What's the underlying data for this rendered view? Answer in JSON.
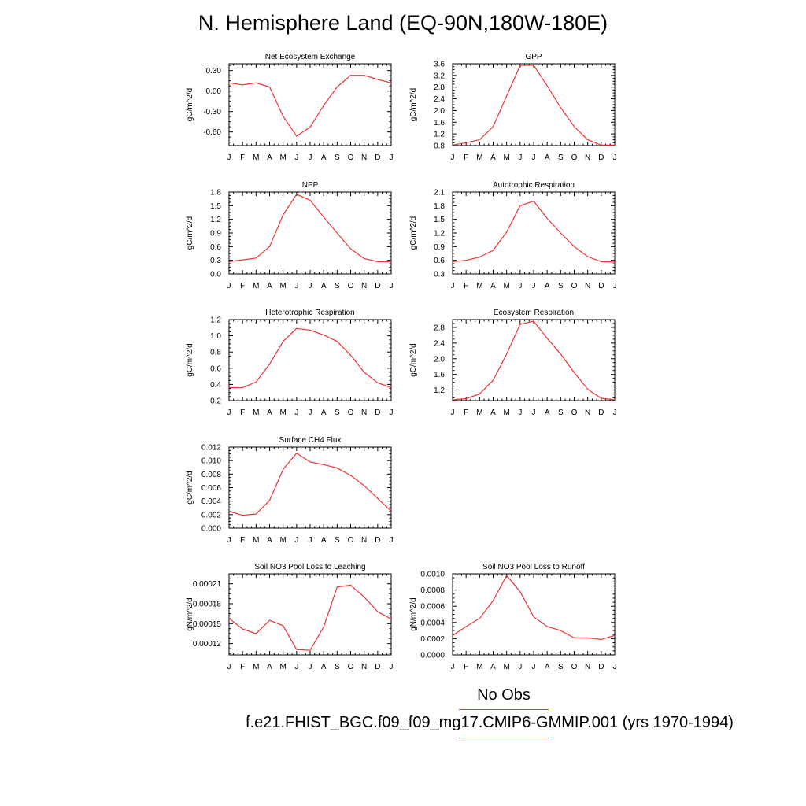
{
  "title": "N. Hemisphere Land (EQ-90N,180W-180E)",
  "legend": {
    "obs_label": "No Obs",
    "obs_color": "#5c5cf0",
    "model_label": "f.e21.FHIST_BGC.f09_f09_mg17.CMIP6-GMMIP.001 (yrs 1970-1994)",
    "model_color": "#ee3333"
  },
  "chart_data": [
    {
      "type": "line",
      "title": "Net Ecosystem Exchange",
      "ylabel": "gC/m^2/d",
      "x": [
        "J",
        "F",
        "M",
        "A",
        "M",
        "J",
        "J",
        "A",
        "S",
        "O",
        "N",
        "D",
        "J"
      ],
      "ylim": [
        -0.8,
        0.4
      ],
      "yticks": [
        "0.30",
        "0.00",
        "-0.30",
        "-0.60"
      ],
      "series": [
        {
          "values": [
            0.12,
            0.09,
            0.12,
            0.06,
            -0.37,
            -0.66,
            -0.53,
            -0.21,
            0.06,
            0.23,
            0.23,
            0.17,
            0.12
          ]
        }
      ]
    },
    {
      "type": "line",
      "title": "GPP",
      "ylabel": "gC/m^2/d",
      "x": [
        "J",
        "F",
        "M",
        "A",
        "M",
        "J",
        "J",
        "A",
        "S",
        "O",
        "N",
        "D",
        "J"
      ],
      "ylim": [
        0.8,
        3.6
      ],
      "yticks": [
        "3.6",
        "3.2",
        "2.8",
        "2.4",
        "2.0",
        "1.6",
        "1.2",
        "0.8"
      ],
      "series": [
        {
          "values": [
            0.82,
            0.9,
            1.0,
            1.45,
            2.5,
            3.54,
            3.55,
            2.85,
            2.1,
            1.45,
            1.0,
            0.82,
            0.82
          ]
        }
      ]
    },
    {
      "type": "line",
      "title": "NPP",
      "ylabel": "gC/m^2/d",
      "x": [
        "J",
        "F",
        "M",
        "A",
        "M",
        "J",
        "J",
        "A",
        "S",
        "O",
        "N",
        "D",
        "J"
      ],
      "ylim": [
        0.0,
        1.8
      ],
      "yticks": [
        "1.8",
        "1.5",
        "1.2",
        "0.9",
        "0.6",
        "0.3",
        "0.0"
      ],
      "series": [
        {
          "values": [
            0.27,
            0.31,
            0.35,
            0.6,
            1.3,
            1.75,
            1.62,
            1.25,
            0.9,
            0.55,
            0.34,
            0.27,
            0.27
          ]
        }
      ]
    },
    {
      "type": "line",
      "title": "Autotrophic Respiration",
      "ylabel": "gC/m^2/d",
      "x": [
        "J",
        "F",
        "M",
        "A",
        "M",
        "J",
        "J",
        "A",
        "S",
        "O",
        "N",
        "D",
        "J"
      ],
      "ylim": [
        0.3,
        2.1
      ],
      "yticks": [
        "2.1",
        "1.8",
        "1.5",
        "1.2",
        "0.9",
        "0.6",
        "0.3"
      ],
      "series": [
        {
          "values": [
            0.57,
            0.6,
            0.67,
            0.82,
            1.22,
            1.8,
            1.9,
            1.52,
            1.2,
            0.9,
            0.68,
            0.57,
            0.56
          ]
        }
      ]
    },
    {
      "type": "line",
      "title": "Heterotrophic Respiration",
      "ylabel": "gC/m^2/d",
      "x": [
        "J",
        "F",
        "M",
        "A",
        "M",
        "J",
        "J",
        "A",
        "S",
        "O",
        "N",
        "D",
        "J"
      ],
      "ylim": [
        0.2,
        1.2
      ],
      "yticks": [
        "1.2",
        "1.0",
        "0.8",
        "0.6",
        "0.4",
        "0.2"
      ],
      "series": [
        {
          "values": [
            0.36,
            0.36,
            0.43,
            0.65,
            0.93,
            1.09,
            1.07,
            1.01,
            0.93,
            0.76,
            0.55,
            0.42,
            0.36
          ]
        }
      ]
    },
    {
      "type": "line",
      "title": "Ecosystem Respiration",
      "ylabel": "gC/m^2/d",
      "x": [
        "J",
        "F",
        "M",
        "A",
        "M",
        "J",
        "J",
        "A",
        "S",
        "O",
        "N",
        "D",
        "J"
      ],
      "ylim": [
        0.93,
        3.0
      ],
      "yticks": [
        "2.8",
        "2.4",
        "2.0",
        "1.6",
        "1.2"
      ],
      "series": [
        {
          "values": [
            0.95,
            0.98,
            1.1,
            1.45,
            2.12,
            2.88,
            2.96,
            2.52,
            2.12,
            1.65,
            1.22,
            0.99,
            0.95
          ]
        }
      ]
    },
    {
      "type": "line",
      "title": "Surface CH4 Flux",
      "ylabel": "gC/m^2/d",
      "x": [
        "J",
        "F",
        "M",
        "A",
        "M",
        "J",
        "J",
        "A",
        "S",
        "O",
        "N",
        "D",
        "J"
      ],
      "ylim": [
        0.0,
        0.012
      ],
      "yticks": [
        "0.012",
        "0.010",
        "0.008",
        "0.006",
        "0.004",
        "0.002",
        "0.000"
      ],
      "series": [
        {
          "values": [
            0.0025,
            0.0019,
            0.0021,
            0.0041,
            0.0087,
            0.0111,
            0.0098,
            0.0094,
            0.0089,
            0.0078,
            0.0063,
            0.0044,
            0.0025
          ]
        }
      ]
    },
    {
      "type": "line",
      "title": "Soil NO3 Pool Loss to Leaching",
      "ylabel": "gN/m^2/d",
      "x": [
        "J",
        "F",
        "M",
        "A",
        "M",
        "J",
        "J",
        "A",
        "S",
        "O",
        "N",
        "D",
        "J"
      ],
      "ylim": [
        0.000103,
        0.000225
      ],
      "yticks": [
        "0.00021",
        "0.00018",
        "0.00015",
        "0.00012"
      ],
      "series": [
        {
          "values": [
            0.000158,
            0.000142,
            0.000135,
            0.000155,
            0.000147,
            0.000111,
            0.00011,
            0.000145,
            0.000205,
            0.000208,
            0.00019,
            0.000168,
            0.000157
          ]
        }
      ]
    },
    {
      "type": "line",
      "title": "Soil NO3 Pool Loss to Runoff",
      "ylabel": "gN/m^2/d",
      "x": [
        "J",
        "F",
        "M",
        "A",
        "M",
        "J",
        "J",
        "A",
        "S",
        "O",
        "N",
        "D",
        "J"
      ],
      "ylim": [
        0.0,
        0.001
      ],
      "yticks": [
        "0.0010",
        "0.0008",
        "0.0006",
        "0.0004",
        "0.0002",
        "0.0000"
      ],
      "series": [
        {
          "values": [
            0.00024,
            0.00035,
            0.00045,
            0.00067,
            0.00098,
            0.00078,
            0.00047,
            0.00035,
            0.0003,
            0.00021,
            0.00021,
            0.00019,
            0.00024
          ]
        }
      ]
    }
  ]
}
